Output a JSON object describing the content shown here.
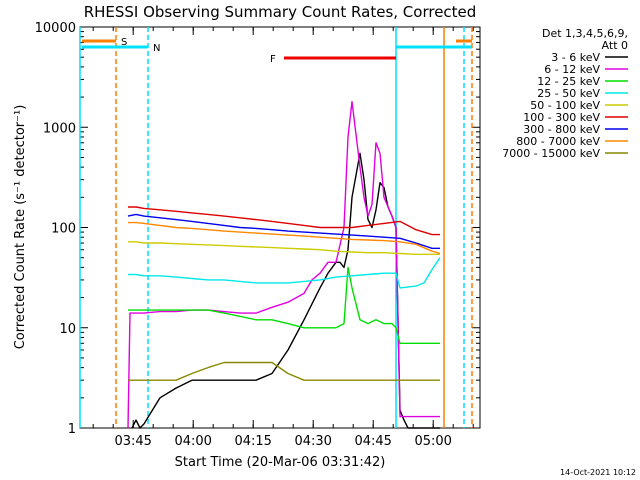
{
  "chart_data": {
    "type": "line",
    "title": "RHESSI Observing Summary Count Rates, Corrected",
    "xlabel": "Start Time (20-Mar-06 03:31:42)",
    "ylabel": "Corrected Count Rate (s⁻¹ detector⁻¹)",
    "yscale": "log",
    "ylim": [
      1,
      10000
    ],
    "xlim_minutes": [
      0,
      100
    ],
    "x_ticks": [
      "03:45",
      "04:00",
      "04:15",
      "04:30",
      "04:45",
      "05:00"
    ],
    "x_tick_minutes": [
      13.3,
      28.3,
      43.3,
      58.3,
      73.3,
      88.3
    ],
    "y_ticks": [
      "1",
      "10",
      "100",
      "1000",
      "10000"
    ],
    "y_tick_values": [
      1,
      10,
      100,
      1000,
      10000
    ],
    "grid": false,
    "legend_position": "right",
    "legend_header": [
      "Det 1,3,4,5,6,9,",
      "Att 0"
    ],
    "flags": [
      {
        "label": "S",
        "color": "#ff7f00",
        "x_start": 0,
        "x_end": 9
      },
      {
        "label": "N",
        "color": "#00e0ff",
        "x_start": 0,
        "x_end": 17
      },
      {
        "label": "F",
        "color": "#ee0000",
        "x_start": 51,
        "x_end": 79
      },
      {
        "label": "",
        "color": "#00e0ff",
        "x_start": 79,
        "x_end": 98
      },
      {
        "label": "",
        "color": "#ff7f00",
        "x_start": 94,
        "x_end": 98
      }
    ],
    "vertical_markers": [
      {
        "x": 0,
        "color": "#00e0ff",
        "style": "solid"
      },
      {
        "x": 9,
        "color": "#ff7f00",
        "style": "dashed"
      },
      {
        "x": 17,
        "color": "#00e0ff",
        "style": "dashed"
      },
      {
        "x": 79,
        "color": "#00e0ff",
        "style": "solid"
      },
      {
        "x": 91,
        "color": "#ff7f00",
        "style": "solid"
      },
      {
        "x": 96,
        "color": "#00e0ff",
        "style": "dashed"
      },
      {
        "x": 98,
        "color": "#ff7f00",
        "style": "dashed"
      }
    ],
    "series": [
      {
        "name": "3 - 6 keV",
        "color": "#000000",
        "x": [
          13,
          14,
          15,
          16,
          20,
          24,
          28,
          32,
          36,
          40,
          44,
          48,
          52,
          56,
          60,
          62,
          64,
          65,
          66,
          67,
          68,
          70,
          71,
          72,
          73,
          74,
          75,
          76,
          77,
          78,
          79,
          80,
          81,
          82,
          84,
          86,
          88,
          90
        ],
        "y": [
          1,
          1.2,
          1,
          1.1,
          2,
          2.5,
          3,
          3,
          3,
          3,
          3,
          3.5,
          6,
          12,
          25,
          35,
          45,
          45,
          40,
          60,
          200,
          550,
          300,
          120,
          100,
          150,
          280,
          250,
          160,
          130,
          100,
          1.5,
          1.2,
          1,
          1,
          1,
          1,
          1
        ]
      },
      {
        "name": "6 - 12 keV",
        "color": "#e000e0",
        "x": [
          12,
          12.5,
          13,
          14,
          16,
          20,
          24,
          28,
          32,
          36,
          40,
          44,
          48,
          52,
          56,
          58,
          60,
          62,
          64,
          66,
          67,
          68,
          70,
          71,
          72,
          73,
          74,
          75,
          76,
          78,
          79,
          80,
          84,
          88,
          90
        ],
        "y": [
          1,
          14,
          14,
          14,
          14,
          14.5,
          14.5,
          15,
          15,
          14.5,
          14,
          14,
          16,
          18,
          22,
          30,
          35,
          45,
          45,
          100,
          800,
          1800,
          400,
          200,
          130,
          170,
          700,
          550,
          200,
          130,
          100,
          1.3,
          1.3,
          1.3,
          1.3
        ]
      },
      {
        "name": "12 - 25 keV",
        "color": "#00dd00",
        "x": [
          12,
          14,
          16,
          20,
          24,
          28,
          32,
          36,
          40,
          44,
          48,
          52,
          56,
          60,
          62,
          64,
          66,
          67,
          68,
          70,
          72,
          74,
          76,
          78,
          79,
          80,
          84,
          88,
          90
        ],
        "y": [
          15,
          15,
          15,
          15,
          15,
          15,
          15,
          14,
          13,
          12,
          12,
          11,
          10,
          10,
          10,
          10,
          11,
          40,
          25,
          12,
          11,
          12,
          11,
          11,
          10,
          7,
          7,
          7,
          7
        ]
      },
      {
        "name": "25 - 50 keV",
        "color": "#00e8e8",
        "x": [
          12,
          14,
          16,
          20,
          24,
          28,
          32,
          36,
          40,
          44,
          48,
          52,
          56,
          60,
          64,
          68,
          72,
          76,
          79,
          80,
          84,
          86,
          88,
          90
        ],
        "y": [
          34,
          34,
          33,
          33,
          32,
          31,
          30,
          30,
          29,
          28,
          28,
          28,
          29,
          30,
          32,
          33,
          34,
          35,
          35,
          25,
          26,
          28,
          38,
          50
        ]
      },
      {
        "name": "50 - 100 keV",
        "color": "#cccc00",
        "x": [
          12,
          14,
          16,
          20,
          24,
          28,
          32,
          36,
          40,
          44,
          48,
          52,
          56,
          60,
          64,
          68,
          72,
          76,
          80,
          84,
          88,
          90
        ],
        "y": [
          72,
          72,
          70,
          70,
          69,
          68,
          67,
          66,
          65,
          64,
          63,
          62,
          61,
          60,
          58,
          57,
          56,
          56,
          55,
          54,
          54,
          54
        ]
      },
      {
        "name": "100 - 300 keV",
        "color": "#dd0000",
        "x": [
          12,
          14,
          16,
          20,
          24,
          28,
          32,
          36,
          40,
          44,
          48,
          52,
          56,
          60,
          64,
          68,
          72,
          76,
          80,
          84,
          88,
          90
        ],
        "y": [
          160,
          160,
          155,
          150,
          145,
          140,
          135,
          130,
          125,
          120,
          115,
          110,
          105,
          100,
          100,
          100,
          105,
          110,
          115,
          95,
          85,
          85
        ]
      },
      {
        "name": "300 - 800 keV",
        "color": "#0000ee",
        "x": [
          12,
          14,
          16,
          20,
          24,
          28,
          32,
          36,
          40,
          44,
          48,
          52,
          56,
          60,
          64,
          68,
          72,
          76,
          80,
          84,
          88,
          90
        ],
        "y": [
          130,
          135,
          130,
          125,
          120,
          115,
          110,
          105,
          100,
          98,
          95,
          92,
          90,
          88,
          86,
          84,
          82,
          80,
          78,
          70,
          62,
          62
        ]
      },
      {
        "name": "800 - 7000 keV",
        "color": "#ff8800",
        "x": [
          12,
          14,
          16,
          20,
          24,
          28,
          32,
          36,
          40,
          44,
          48,
          52,
          56,
          60,
          64,
          68,
          72,
          76,
          80,
          84,
          88,
          90
        ],
        "y": [
          112,
          112,
          110,
          105,
          100,
          98,
          95,
          92,
          90,
          88,
          86,
          84,
          82,
          80,
          78,
          76,
          75,
          74,
          72,
          68,
          58,
          55
        ]
      },
      {
        "name": "7000 - 15000 keV",
        "color": "#888800",
        "x": [
          12,
          14,
          16,
          20,
          24,
          28,
          32,
          36,
          40,
          44,
          48,
          52,
          56,
          60,
          64,
          68,
          72,
          76,
          79,
          80,
          84,
          86,
          88,
          90
        ],
        "y": [
          3,
          3,
          3,
          3,
          3,
          3.5,
          4,
          4.5,
          4.5,
          4.5,
          4.5,
          3.5,
          3,
          3,
          3,
          3,
          3,
          3,
          3,
          3,
          3,
          3,
          3,
          3
        ]
      }
    ]
  },
  "footer": {
    "datestamp": "14-Oct-2021 10:12"
  }
}
